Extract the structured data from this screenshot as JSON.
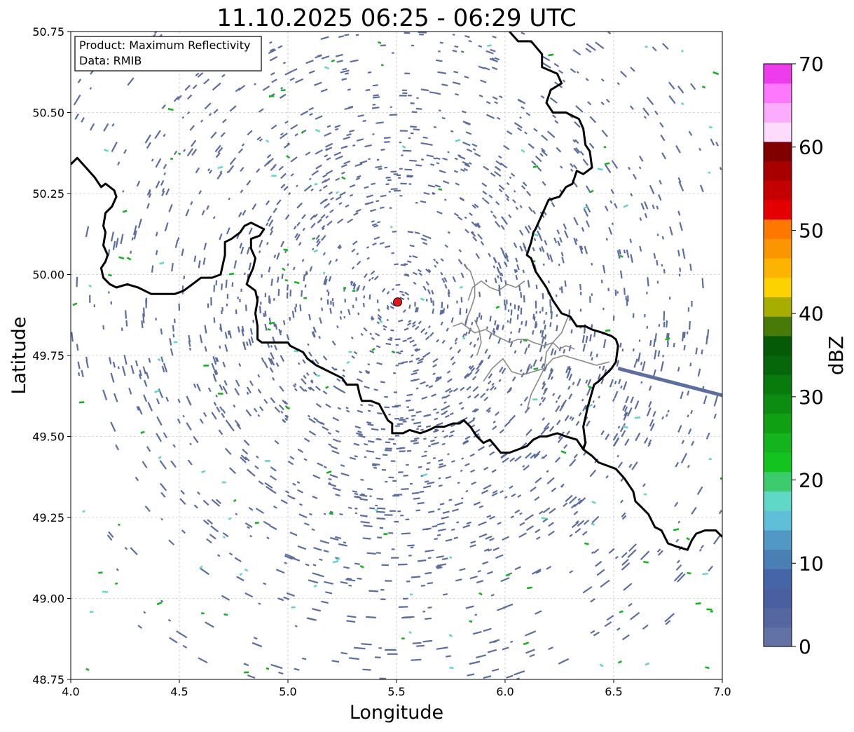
{
  "title": "11.10.2025 06:25 - 06:29 UTC",
  "info_box": {
    "product_line": "Product: Maximum Reflectivity",
    "data_line": "Data: RMIB"
  },
  "axes": {
    "xlabel": "Longitude",
    "ylabel": "Latitude",
    "xlim": [
      4.0,
      7.0
    ],
    "ylim": [
      48.75,
      50.75
    ],
    "xticks": [
      "4.0",
      "4.5",
      "5.0",
      "5.5",
      "6.0",
      "6.5",
      "7.0"
    ],
    "yticks": [
      "48.75",
      "49.00",
      "49.25",
      "49.50",
      "49.75",
      "50.00",
      "50.25",
      "50.50",
      "50.75"
    ],
    "grid": true
  },
  "radar_site": {
    "lon": 5.505,
    "lat": 49.915,
    "color": "#e8141c"
  },
  "colorbar": {
    "label": "dBZ",
    "ticks": [
      "0",
      "10",
      "20",
      "30",
      "40",
      "50",
      "60",
      "70"
    ],
    "min": 0,
    "max": 70,
    "colors": [
      "#6272a4",
      "#5566a0",
      "#4a5fa0",
      "#4664a8",
      "#4a7fb4",
      "#5199c4",
      "#5fbfd8",
      "#5fd8c8",
      "#3ccc6e",
      "#14c41e",
      "#14b41e",
      "#0fa014",
      "#0c8c10",
      "#097a0c",
      "#06660a",
      "#045a06",
      "#487a08",
      "#a8ae00",
      "#fcd200",
      "#fcb400",
      "#fc9600",
      "#fc7800",
      "#e40000",
      "#c40000",
      "#a80000",
      "#800000",
      "#fcdcfc",
      "#fcacfc",
      "#fc78fc",
      "#ec3cec"
    ]
  },
  "borders": {
    "national": [
      [
        [
          4.0,
          50.34
        ],
        [
          4.03,
          50.36
        ],
        [
          4.07,
          50.33
        ],
        [
          4.11,
          50.3
        ],
        [
          4.14,
          50.27
        ],
        [
          4.16,
          50.28
        ],
        [
          4.2,
          50.26
        ],
        [
          4.21,
          50.24
        ],
        [
          4.19,
          50.21
        ],
        [
          4.16,
          50.19
        ],
        [
          4.15,
          50.15
        ],
        [
          4.16,
          50.13
        ],
        [
          4.15,
          50.09
        ],
        [
          4.17,
          50.06
        ],
        [
          4.16,
          50.04
        ],
        [
          4.14,
          50.02
        ],
        [
          4.15,
          49.99
        ],
        [
          4.18,
          49.97
        ],
        [
          4.21,
          49.96
        ],
        [
          4.26,
          49.97
        ],
        [
          4.31,
          49.96
        ],
        [
          4.37,
          49.94
        ],
        [
          4.43,
          49.94
        ],
        [
          4.48,
          49.94
        ],
        [
          4.52,
          49.95
        ],
        [
          4.56,
          49.97
        ],
        [
          4.6,
          49.99
        ],
        [
          4.65,
          49.99
        ],
        [
          4.69,
          50.0
        ],
        [
          4.7,
          50.03
        ],
        [
          4.71,
          50.06
        ],
        [
          4.71,
          50.1
        ],
        [
          4.74,
          50.11
        ],
        [
          4.78,
          50.13
        ],
        [
          4.8,
          50.15
        ],
        [
          4.83,
          50.16
        ],
        [
          4.86,
          50.15
        ],
        [
          4.89,
          50.14
        ],
        [
          4.87,
          50.12
        ],
        [
          4.83,
          50.11
        ],
        [
          4.83,
          50.08
        ],
        [
          4.85,
          50.05
        ],
        [
          4.84,
          50.02
        ],
        [
          4.82,
          49.99
        ],
        [
          4.81,
          49.97
        ],
        [
          4.85,
          49.95
        ],
        [
          4.86,
          49.92
        ],
        [
          4.85,
          49.88
        ],
        [
          4.86,
          49.84
        ],
        [
          4.86,
          49.8
        ],
        [
          4.88,
          49.79
        ],
        [
          4.95,
          49.79
        ],
        [
          5.0,
          49.79
        ],
        [
          5.01,
          49.78
        ],
        [
          5.04,
          49.77
        ],
        [
          5.07,
          49.76
        ],
        [
          5.09,
          49.74
        ],
        [
          5.13,
          49.72
        ],
        [
          5.16,
          49.71
        ],
        [
          5.19,
          49.7
        ],
        [
          5.22,
          49.69
        ],
        [
          5.25,
          49.68
        ],
        [
          5.27,
          49.66
        ],
        [
          5.29,
          49.66
        ],
        [
          5.32,
          49.66
        ],
        [
          5.33,
          49.63
        ],
        [
          5.34,
          49.61
        ],
        [
          5.38,
          49.61
        ],
        [
          5.42,
          49.6
        ],
        [
          5.46,
          49.55
        ],
        [
          5.48,
          49.54
        ],
        [
          5.48,
          49.51
        ],
        [
          5.53,
          49.51
        ],
        [
          5.56,
          49.52
        ],
        [
          5.61,
          49.51
        ],
        [
          5.65,
          49.52
        ],
        [
          5.68,
          49.53
        ],
        [
          5.72,
          49.53
        ],
        [
          5.76,
          49.54
        ],
        [
          5.79,
          49.54
        ],
        [
          5.81,
          49.55
        ],
        [
          5.84,
          49.53
        ],
        [
          5.87,
          49.5
        ],
        [
          5.9,
          49.48
        ],
        [
          5.93,
          49.49
        ],
        [
          5.98,
          49.45
        ],
        [
          6.02,
          49.45
        ],
        [
          6.06,
          49.46
        ],
        [
          6.1,
          49.47
        ],
        [
          6.13,
          49.49
        ],
        [
          6.16,
          49.5
        ],
        [
          6.19,
          49.5
        ],
        [
          6.24,
          49.51
        ],
        [
          6.28,
          49.5
        ],
        [
          6.33,
          49.49
        ],
        [
          6.36,
          49.46
        ],
        [
          6.4,
          49.44
        ],
        [
          6.43,
          49.42
        ],
        [
          6.47,
          49.41
        ],
        [
          6.51,
          49.4
        ],
        [
          6.55,
          49.37
        ],
        [
          6.57,
          49.35
        ],
        [
          6.59,
          49.33
        ],
        [
          6.6,
          49.3
        ],
        [
          6.63,
          49.28
        ],
        [
          6.66,
          49.26
        ],
        [
          6.69,
          49.22
        ],
        [
          6.72,
          49.21
        ],
        [
          6.75,
          49.17
        ],
        [
          6.79,
          49.16
        ],
        [
          6.84,
          49.15
        ],
        [
          6.86,
          49.18
        ],
        [
          6.88,
          49.2
        ],
        [
          6.92,
          49.21
        ],
        [
          6.97,
          49.21
        ],
        [
          7.0,
          49.19
        ]
      ],
      [
        [
          6.02,
          50.75
        ],
        [
          6.06,
          50.72
        ],
        [
          6.12,
          50.72
        ],
        [
          6.17,
          50.68
        ],
        [
          6.17,
          50.64
        ],
        [
          6.24,
          50.62
        ],
        [
          6.26,
          50.59
        ],
        [
          6.21,
          50.57
        ],
        [
          6.19,
          50.53
        ],
        [
          6.22,
          50.5
        ],
        [
          6.28,
          50.5
        ],
        [
          6.34,
          50.48
        ],
        [
          6.36,
          50.45
        ],
        [
          6.37,
          50.4
        ],
        [
          6.39,
          50.38
        ],
        [
          6.4,
          50.33
        ],
        [
          6.36,
          50.31
        ],
        [
          6.33,
          50.32
        ],
        [
          6.31,
          50.28
        ],
        [
          6.28,
          50.27
        ],
        [
          6.25,
          50.24
        ],
        [
          6.2,
          50.23
        ],
        [
          6.18,
          50.2
        ],
        [
          6.16,
          50.17
        ],
        [
          6.14,
          50.14
        ],
        [
          6.13,
          50.13
        ],
        [
          6.12,
          50.1
        ],
        [
          6.1,
          50.06
        ],
        [
          6.12,
          50.05
        ],
        [
          6.14,
          50.01
        ],
        [
          6.17,
          49.98
        ],
        [
          6.19,
          49.96
        ],
        [
          6.22,
          49.92
        ],
        [
          6.26,
          49.88
        ],
        [
          6.3,
          49.87
        ],
        [
          6.33,
          49.84
        ],
        [
          6.37,
          49.84
        ],
        [
          6.4,
          49.83
        ],
        [
          6.45,
          49.82
        ],
        [
          6.49,
          49.81
        ],
        [
          6.51,
          49.8
        ],
        [
          6.52,
          49.78
        ],
        [
          6.51,
          49.73
        ],
        [
          6.49,
          49.71
        ],
        [
          6.43,
          49.67
        ],
        [
          6.41,
          49.66
        ],
        [
          6.38,
          49.59
        ],
        [
          6.37,
          49.56
        ],
        [
          6.36,
          49.53
        ],
        [
          6.37,
          49.48
        ],
        [
          6.36,
          49.46
        ]
      ]
    ],
    "regional": [
      [
        [
          5.76,
          49.84
        ],
        [
          5.8,
          49.85
        ],
        [
          5.86,
          49.82
        ],
        [
          5.91,
          49.83
        ],
        [
          5.96,
          49.81
        ],
        [
          6.02,
          49.79
        ],
        [
          6.06,
          49.8
        ],
        [
          6.1,
          49.8
        ],
        [
          6.13,
          49.79
        ],
        [
          6.18,
          49.78
        ],
        [
          6.22,
          49.79
        ],
        [
          6.25,
          49.77
        ],
        [
          6.28,
          49.78
        ],
        [
          6.32,
          49.77
        ]
      ],
      [
        [
          5.9,
          49.67
        ],
        [
          5.94,
          49.71
        ],
        [
          5.99,
          49.74
        ],
        [
          6.03,
          49.7
        ],
        [
          6.08,
          49.69
        ],
        [
          6.13,
          49.7
        ],
        [
          6.18,
          49.71
        ],
        [
          6.22,
          49.74
        ],
        [
          6.27,
          49.75
        ],
        [
          6.32,
          49.74
        ],
        [
          6.37,
          49.73
        ],
        [
          6.42,
          49.72
        ],
        [
          6.48,
          49.73
        ]
      ],
      [
        [
          5.83,
          49.92
        ],
        [
          5.85,
          49.96
        ],
        [
          5.89,
          49.98
        ],
        [
          5.93,
          49.96
        ],
        [
          5.97,
          49.95
        ],
        [
          6.01,
          49.97
        ],
        [
          6.05,
          49.96
        ],
        [
          6.09,
          49.98
        ]
      ],
      [
        [
          6.1,
          49.58
        ],
        [
          6.12,
          49.63
        ],
        [
          6.15,
          49.67
        ],
        [
          6.18,
          49.71
        ],
        [
          6.19,
          49.76
        ],
        [
          6.22,
          49.79
        ],
        [
          6.26,
          49.82
        ],
        [
          6.29,
          49.87
        ]
      ],
      [
        [
          5.87,
          49.75
        ],
        [
          5.89,
          49.79
        ],
        [
          5.88,
          49.83
        ],
        [
          5.86,
          49.86
        ]
      ],
      [
        [
          5.81,
          50.03
        ],
        [
          5.84,
          50.01
        ],
        [
          5.86,
          49.97
        ],
        [
          5.86,
          49.93
        ],
        [
          5.84,
          49.89
        ],
        [
          5.82,
          49.86
        ]
      ]
    ]
  }
}
